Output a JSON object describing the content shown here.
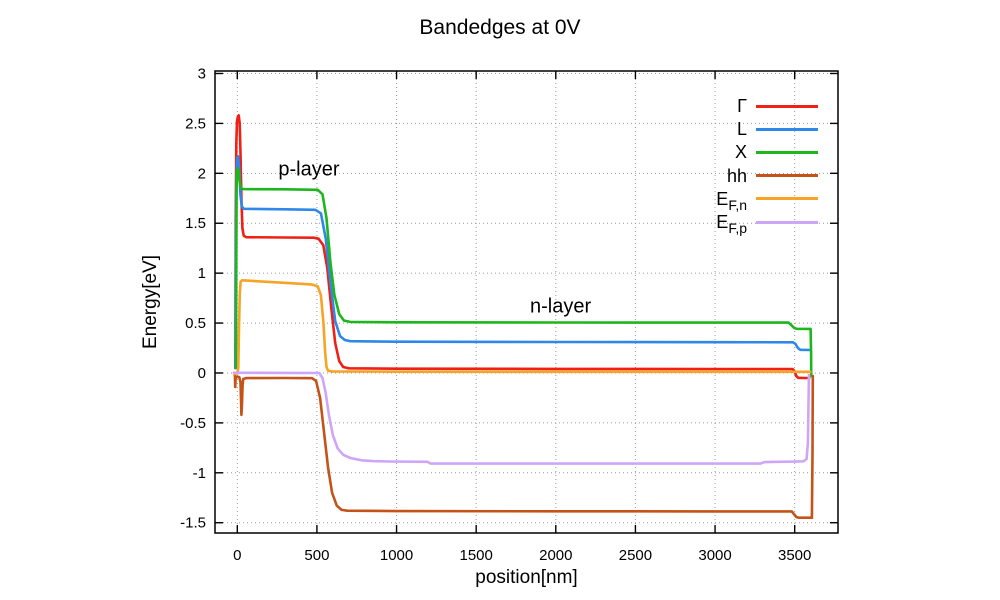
{
  "window": {
    "background": "#ffffff"
  },
  "chart_data": {
    "type": "line",
    "title": "Bandedges at 0V",
    "xlabel": "position[nm]",
    "ylabel": "Energy[eV]",
    "xlim": [
      -140,
      3772
    ],
    "ylim": [
      -1.603,
      3.025
    ],
    "xticks": [
      {
        "v": 0,
        "label": "0"
      },
      {
        "v": 500,
        "label": "500"
      },
      {
        "v": 1000,
        "label": "1000"
      },
      {
        "v": 1500,
        "label": "1500"
      },
      {
        "v": 2000,
        "label": "2000"
      },
      {
        "v": 2500,
        "label": "2500"
      },
      {
        "v": 3000,
        "label": "3000"
      },
      {
        "v": 3500,
        "label": "3500"
      }
    ],
    "yticks": [
      {
        "v": 3,
        "label": "3"
      },
      {
        "v": 2.5,
        "label": "2.5"
      },
      {
        "v": 2,
        "label": "2"
      },
      {
        "v": 1.5,
        "label": "1.5"
      },
      {
        "v": 1,
        "label": "1"
      },
      {
        "v": 0.5,
        "label": "0.5"
      },
      {
        "v": 0,
        "label": "0"
      },
      {
        "v": -0.5,
        "label": "-0.5"
      },
      {
        "v": -1,
        "label": "-1"
      },
      {
        "v": -1.5,
        "label": "-1.5"
      }
    ],
    "grid": true,
    "grid_color": "#9a9a9a",
    "axis_color": "#000000",
    "legend_position": "top-right-inside",
    "annotations": [
      {
        "text": "p-layer",
        "x": 450,
        "y": 2.03
      },
      {
        "text": "n-layer",
        "x": 2030,
        "y": 0.66
      }
    ],
    "series": [
      {
        "name": "Γ",
        "sub": "",
        "color": "#ef2016",
        "points": [
          [
            -12,
            0.05
          ],
          [
            -10,
            1.5
          ],
          [
            -6,
            2.3
          ],
          [
            -2,
            2.52
          ],
          [
            4,
            2.57
          ],
          [
            9,
            2.58
          ],
          [
            15,
            2.5
          ],
          [
            20,
            2.2
          ],
          [
            26,
            1.75
          ],
          [
            32,
            1.45
          ],
          [
            40,
            1.375
          ],
          [
            55,
            1.36
          ],
          [
            300,
            1.357
          ],
          [
            480,
            1.355
          ],
          [
            510,
            1.345
          ],
          [
            540,
            1.28
          ],
          [
            565,
            1.05
          ],
          [
            590,
            0.65
          ],
          [
            615,
            0.3
          ],
          [
            640,
            0.12
          ],
          [
            665,
            0.06
          ],
          [
            700,
            0.047
          ],
          [
            1000,
            0.043
          ],
          [
            2000,
            0.041
          ],
          [
            3000,
            0.04
          ],
          [
            3487,
            0.04
          ],
          [
            3498,
            0.02
          ],
          [
            3510,
            -0.03
          ],
          [
            3522,
            -0.048
          ],
          [
            3560,
            -0.05
          ],
          [
            3592,
            -0.05
          ]
        ]
      },
      {
        "name": "L",
        "sub": "",
        "color": "#2f87e8",
        "points": [
          [
            -12,
            0.05
          ],
          [
            -9,
            1.4
          ],
          [
            -5,
            2.0
          ],
          [
            0,
            2.16
          ],
          [
            5,
            2.17
          ],
          [
            12,
            2.05
          ],
          [
            20,
            1.78
          ],
          [
            28,
            1.67
          ],
          [
            40,
            1.645
          ],
          [
            300,
            1.64
          ],
          [
            490,
            1.635
          ],
          [
            525,
            1.6
          ],
          [
            555,
            1.35
          ],
          [
            585,
            0.9
          ],
          [
            615,
            0.52
          ],
          [
            645,
            0.37
          ],
          [
            675,
            0.33
          ],
          [
            710,
            0.318
          ],
          [
            1000,
            0.313
          ],
          [
            2000,
            0.31
          ],
          [
            3000,
            0.308
          ],
          [
            3490,
            0.307
          ],
          [
            3505,
            0.29
          ],
          [
            3520,
            0.25
          ],
          [
            3535,
            0.232
          ],
          [
            3600,
            0.23
          ]
        ]
      },
      {
        "name": "X",
        "sub": "",
        "color": "#1cb71c",
        "points": [
          [
            -8,
            0.05
          ],
          [
            -6,
            1.2
          ],
          [
            -4,
            2.0
          ],
          [
            0,
            2.05
          ],
          [
            7,
            2.03
          ],
          [
            13,
            1.93
          ],
          [
            20,
            1.86
          ],
          [
            35,
            1.842
          ],
          [
            300,
            1.84
          ],
          [
            505,
            1.835
          ],
          [
            535,
            1.79
          ],
          [
            560,
            1.55
          ],
          [
            585,
            1.1
          ],
          [
            610,
            0.78
          ],
          [
            640,
            0.59
          ],
          [
            670,
            0.525
          ],
          [
            710,
            0.512
          ],
          [
            1000,
            0.508
          ],
          [
            2000,
            0.506
          ],
          [
            3000,
            0.505
          ],
          [
            3462,
            0.505
          ],
          [
            3480,
            0.478
          ],
          [
            3497,
            0.452
          ],
          [
            3512,
            0.443
          ],
          [
            3600,
            0.442
          ],
          [
            3603,
            0.2
          ],
          [
            3604,
            -0.03
          ]
        ]
      },
      {
        "name": "hh",
        "sub": "",
        "color": "#c4531a",
        "points": [
          [
            -20,
            0.0
          ],
          [
            -15,
            -0.02
          ],
          [
            -13,
            -0.14
          ],
          [
            -10,
            -0.04
          ],
          [
            0,
            -0.038
          ],
          [
            12,
            -0.04
          ],
          [
            20,
            -0.09
          ],
          [
            24,
            -0.3
          ],
          [
            26,
            -0.42
          ],
          [
            29,
            -0.33
          ],
          [
            33,
            -0.12
          ],
          [
            38,
            -0.06
          ],
          [
            55,
            -0.051
          ],
          [
            300,
            -0.05
          ],
          [
            470,
            -0.052
          ],
          [
            495,
            -0.08
          ],
          [
            520,
            -0.25
          ],
          [
            545,
            -0.6
          ],
          [
            570,
            -0.95
          ],
          [
            595,
            -1.2
          ],
          [
            625,
            -1.33
          ],
          [
            655,
            -1.372
          ],
          [
            690,
            -1.38
          ],
          [
            1000,
            -1.384
          ],
          [
            2000,
            -1.386
          ],
          [
            3000,
            -1.387
          ],
          [
            3482,
            -1.387
          ],
          [
            3496,
            -1.415
          ],
          [
            3510,
            -1.443
          ],
          [
            3525,
            -1.45
          ],
          [
            3608,
            -1.45
          ],
          [
            3612,
            -0.8
          ],
          [
            3614,
            -0.03
          ]
        ]
      },
      {
        "name": "E",
        "sub": "F,n",
        "color": "#f7a325",
        "points": [
          [
            -17,
            -0.01
          ],
          [
            0,
            -0.005
          ],
          [
            6,
            0.05
          ],
          [
            11,
            0.45
          ],
          [
            16,
            0.8
          ],
          [
            21,
            0.915
          ],
          [
            30,
            0.928
          ],
          [
            60,
            0.925
          ],
          [
            200,
            0.912
          ],
          [
            350,
            0.898
          ],
          [
            470,
            0.885
          ],
          [
            505,
            0.868
          ],
          [
            525,
            0.78
          ],
          [
            540,
            0.52
          ],
          [
            552,
            0.2
          ],
          [
            560,
            0.06
          ],
          [
            570,
            0.022
          ],
          [
            600,
            0.016
          ],
          [
            1000,
            0.013
          ],
          [
            2000,
            0.012
          ],
          [
            3000,
            0.012
          ],
          [
            3598,
            0.012
          ]
        ]
      },
      {
        "name": "E",
        "sub": "F,p",
        "color": "#cfa6f7",
        "points": [
          [
            -20,
            0.002
          ],
          [
            300,
            0.001
          ],
          [
            515,
            0.0
          ],
          [
            535,
            -0.05
          ],
          [
            555,
            -0.2
          ],
          [
            575,
            -0.42
          ],
          [
            600,
            -0.62
          ],
          [
            630,
            -0.755
          ],
          [
            665,
            -0.82
          ],
          [
            710,
            -0.852
          ],
          [
            780,
            -0.875
          ],
          [
            850,
            -0.883
          ],
          [
            950,
            -0.887
          ],
          [
            1100,
            -0.889
          ],
          [
            1195,
            -0.89
          ],
          [
            1205,
            -0.9
          ],
          [
            1215,
            -0.908
          ],
          [
            2000,
            -0.908
          ],
          [
            3285,
            -0.908
          ],
          [
            3310,
            -0.893
          ],
          [
            3500,
            -0.888
          ],
          [
            3555,
            -0.885
          ],
          [
            3575,
            -0.862
          ],
          [
            3583,
            -0.7
          ],
          [
            3587,
            -0.3
          ],
          [
            3589,
            -0.05
          ],
          [
            3590,
            -0.02
          ]
        ]
      }
    ]
  }
}
